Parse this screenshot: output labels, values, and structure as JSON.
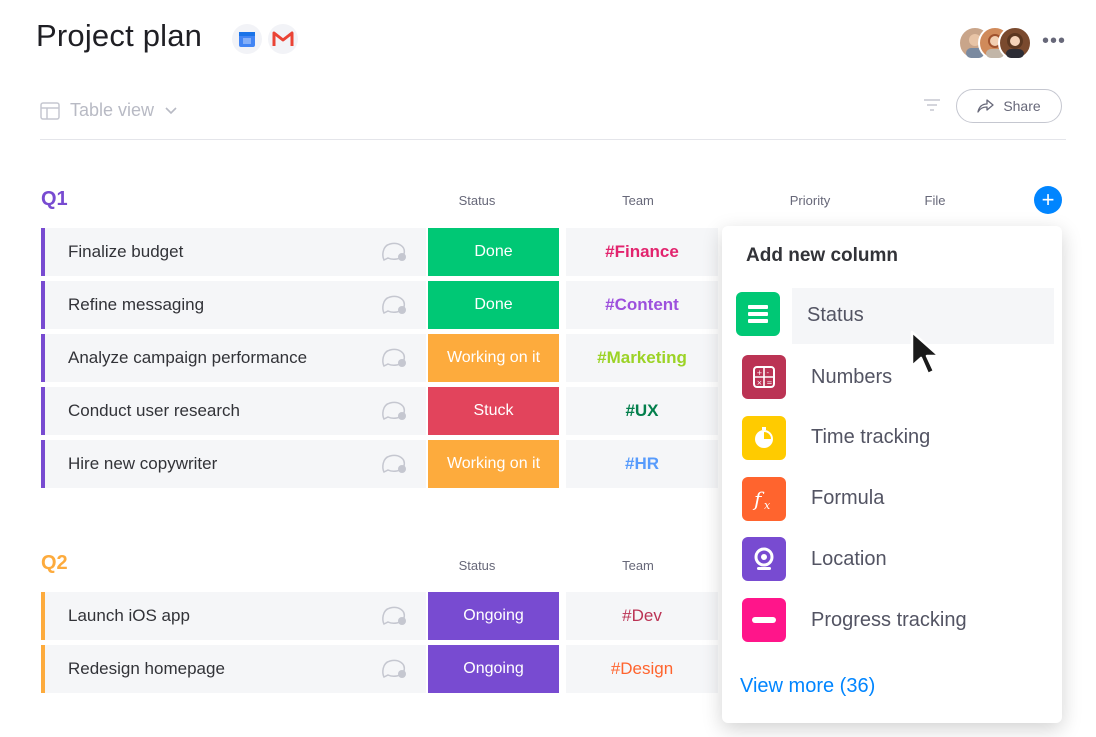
{
  "header": {
    "title": "Project plan",
    "more_label": "•••"
  },
  "toolbar": {
    "view_label": "Table view",
    "share_label": "Share"
  },
  "groups": [
    {
      "title": "Q1",
      "color": "#784bd1",
      "columns": {
        "status": "Status",
        "team": "Team",
        "priority": "Priority",
        "file": "File"
      },
      "rows": [
        {
          "name": "Finalize budget",
          "status": "Done",
          "status_color": "#00c875",
          "team": "#Finance",
          "team_color": "#e2246e"
        },
        {
          "name": "Refine messaging",
          "status": "Done",
          "status_color": "#00c875",
          "team": "#Content",
          "team_color": "#9d50dd"
        },
        {
          "name": "Analyze campaign performance",
          "status": "Working on it",
          "status_color": "#fdab3d",
          "team": "#Marketing",
          "team_color": "#9cd326"
        },
        {
          "name": "Conduct user research",
          "status": "Stuck",
          "status_color": "#e2445c",
          "team": "#UX",
          "team_color": "#037f4c"
        },
        {
          "name": "Hire new copywriter",
          "status": "Working on it",
          "status_color": "#fdab3d",
          "team": "#HR",
          "team_color": "#579bfc"
        }
      ]
    },
    {
      "title": "Q2",
      "color": "#fdab3d",
      "columns": {
        "status": "Status",
        "team": "Team"
      },
      "rows": [
        {
          "name": "Launch iOS app",
          "status": "Ongoing",
          "status_color": "#784bd1",
          "team": "#Dev",
          "team_color": "#bb3354"
        },
        {
          "name": "Redesign homepage",
          "status": "Ongoing",
          "status_color": "#784bd1",
          "team": "#Design",
          "team_color": "#ff642e"
        }
      ]
    }
  ],
  "add_column_menu": {
    "title": "Add new column",
    "items": [
      {
        "label": "Status",
        "icon": "status-icon",
        "color": "#00c875"
      },
      {
        "label": "Numbers",
        "icon": "numbers-icon",
        "color": "#bb3354"
      },
      {
        "label": "Time tracking",
        "icon": "time-tracking-icon",
        "color": "#ffcb00"
      },
      {
        "label": "Formula",
        "icon": "formula-icon",
        "color": "#ff642e"
      },
      {
        "label": "Location",
        "icon": "location-icon",
        "color": "#784bd1"
      },
      {
        "label": "Progress tracking",
        "icon": "progress-tracking-icon",
        "color": "#ff158a"
      }
    ],
    "view_more": "View more (36)"
  }
}
